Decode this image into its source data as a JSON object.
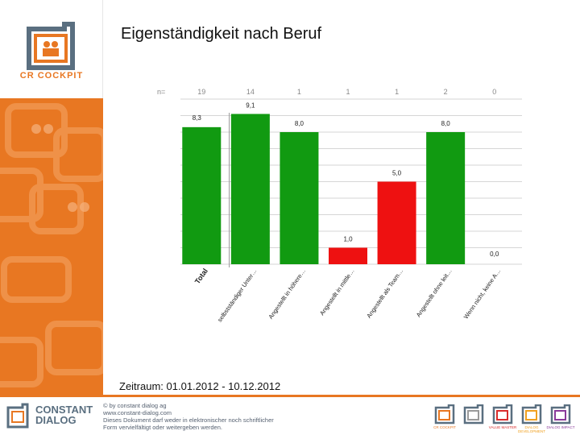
{
  "title": "Eigenständigkeit nach Beruf",
  "logo": {
    "text": "CR COCKPIT"
  },
  "footer": {
    "period": "Zeitraum: 01.01.2012 - 10.12.2012"
  },
  "bottom": {
    "company_line1": "CONSTANT",
    "company_line2": "DIALOG",
    "copyright_lines": [
      "© by constant dialog ag",
      "www.constant-dialog.com",
      "Dieses Dokument darf weder in elektronischer noch schriftlicher",
      "Form vervielfältigt oder weitergeben werden."
    ],
    "products": [
      {
        "label": "CR COCKPIT",
        "color": "#e87722"
      },
      {
        "label": "",
        "color": "#9a9a9a"
      },
      {
        "label": "VALUE MASTER",
        "color": "#d92b2b"
      },
      {
        "label": "DIALOG DEVELOPMENT",
        "color": "#f0a020"
      },
      {
        "label": "DIALOG IMPACT",
        "color": "#8a3a9a"
      }
    ]
  },
  "colors": {
    "green": "#119a11",
    "red": "#ee1111",
    "orange": "#e87722"
  },
  "chart_data": {
    "type": "bar",
    "n_label": "n=",
    "categories": [
      "Total",
      "selbstständiger Unter…",
      "Angestellt in höhere…",
      "Angestellt in mittle…",
      "Angestellt als Team…",
      "Angestellt ohne leit…",
      "Wenn nicht, keine A…"
    ],
    "n_values": [
      "19",
      "14",
      "1",
      "1",
      "1",
      "2",
      "0"
    ],
    "values": [
      8.3,
      9.1,
      8.0,
      1.0,
      5.0,
      8.0,
      0.0
    ],
    "value_labels": [
      "8,3",
      "9,1",
      "8,0",
      "1,0",
      "5,0",
      "8,0",
      "0,0"
    ],
    "bar_colors": [
      "green",
      "green",
      "green",
      "red",
      "red",
      "green",
      "green"
    ],
    "ylim": [
      0,
      10
    ],
    "grid": true
  }
}
